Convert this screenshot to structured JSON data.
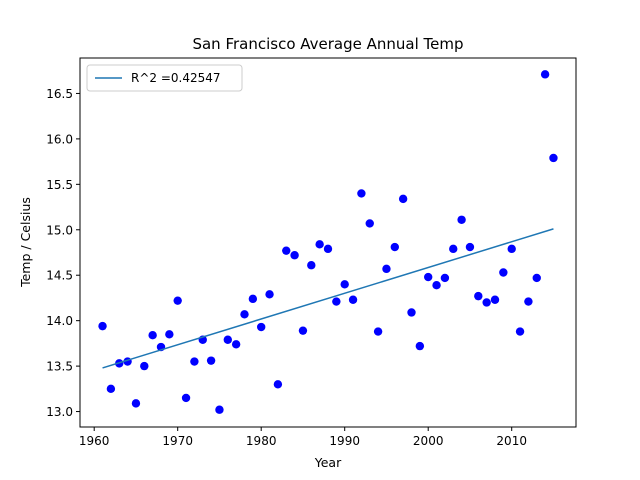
{
  "chart_data": {
    "type": "scatter",
    "title": "San Francisco Average Annual Temp",
    "xlabel": "Year",
    "ylabel": "Temp / Celsius",
    "xlim": [
      1958.3,
      2017.7
    ],
    "ylim": [
      12.83,
      16.89
    ],
    "xticks": [
      1960,
      1970,
      1980,
      1990,
      2000,
      2010
    ],
    "yticks": [
      13.0,
      13.5,
      14.0,
      14.5,
      15.0,
      15.5,
      16.0,
      16.5
    ],
    "ytick_labels": [
      "13.0",
      "13.5",
      "14.0",
      "14.5",
      "15.0",
      "15.5",
      "16.0",
      "16.5"
    ],
    "grid": false,
    "legend_position": "top-left",
    "colors": {
      "points": "#0000ff",
      "fit_line": "#1f77b4"
    },
    "series": [
      {
        "marker": "circle",
        "x": [
          1961,
          1962,
          1963,
          1964,
          1965,
          1966,
          1967,
          1968,
          1969,
          1970,
          1971,
          1972,
          1973,
          1974,
          1975,
          1976,
          1977,
          1978,
          1979,
          1980,
          1981,
          1982,
          1983,
          1984,
          1985,
          1986,
          1987,
          1988,
          1989,
          1990,
          1991,
          1992,
          1993,
          1994,
          1995,
          1996,
          1997,
          1998,
          1999,
          2000,
          2001,
          2002,
          2003,
          2004,
          2005,
          2006,
          2007,
          2008,
          2009,
          2010,
          2011,
          2012,
          2013,
          2014,
          2015
        ],
        "y": [
          13.94,
          13.25,
          13.53,
          13.55,
          13.09,
          13.5,
          13.84,
          13.71,
          13.85,
          14.22,
          13.15,
          13.55,
          13.79,
          13.56,
          13.02,
          13.79,
          13.74,
          14.07,
          14.24,
          13.93,
          14.29,
          13.3,
          14.77,
          14.72,
          13.89,
          14.61,
          14.84,
          14.79,
          14.21,
          14.4,
          14.23,
          15.4,
          15.07,
          13.88,
          14.57,
          14.81,
          15.34,
          14.09,
          13.72,
          14.48,
          14.39,
          14.47,
          14.79,
          15.11,
          14.81,
          14.27,
          14.2,
          14.23,
          14.53,
          14.79,
          13.88,
          14.21,
          14.47,
          16.71,
          15.79
        ]
      },
      {
        "name": "R^2 =0.42547",
        "type": "line",
        "x": [
          1961,
          2015
        ],
        "y": [
          13.48,
          15.01
        ]
      }
    ]
  }
}
